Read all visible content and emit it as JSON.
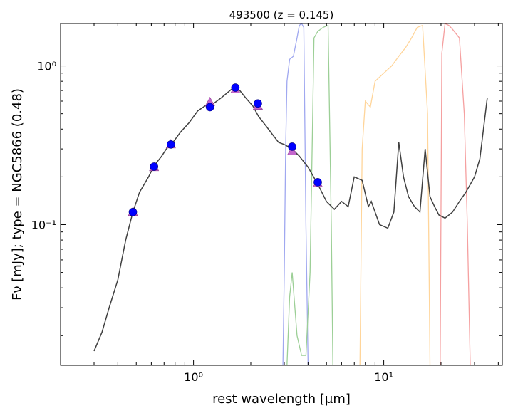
{
  "chart_data": {
    "type": "line",
    "title": "493500 (z = 0.145)",
    "xlabel": "rest wavelength [μm]",
    "ylabel": "Fν [mJy];  type = NGC5866 (0.48)",
    "xscale": "log",
    "yscale": "log",
    "xlim": [
      0.2,
      42
    ],
    "ylim": [
      0.013,
      1.85
    ],
    "grid": false,
    "x_ticks": [
      {
        "value": 1,
        "label": "10⁰"
      },
      {
        "value": 10,
        "label": "10¹"
      }
    ],
    "y_ticks": [
      {
        "value": 0.1,
        "label": "10⁻¹"
      },
      {
        "value": 1,
        "label": "10⁰"
      }
    ],
    "colors": {
      "sed": "#404040",
      "observed": "#0000ff",
      "model": "#c466cc",
      "filter_blue": "#a0a8f0",
      "filter_green": "#9ccf96",
      "filter_orange": "#ffd59a",
      "filter_red": "#f5a0a0"
    },
    "series": [
      {
        "kind": "sed_template",
        "x": [
          0.3,
          0.33,
          0.36,
          0.4,
          0.44,
          0.48,
          0.52,
          0.58,
          0.62,
          0.68,
          0.72,
          0.78,
          0.85,
          0.95,
          1.05,
          1.15,
          1.25,
          1.4,
          1.6,
          1.75,
          1.9,
          2.05,
          2.2,
          2.4,
          2.6,
          2.8,
          3.0,
          3.3,
          3.6,
          4.0,
          4.5,
          5.0,
          5.5,
          6.0,
          6.5,
          7.0,
          7.7,
          8.3,
          8.6,
          9.5,
          10.5,
          11.3,
          12.0,
          12.7,
          13.5,
          14.5,
          15.5,
          16.5,
          17.5,
          18.5,
          19.5,
          21,
          23,
          25,
          27,
          30,
          32,
          35
        ],
        "y": [
          0.016,
          0.021,
          0.03,
          0.045,
          0.08,
          0.12,
          0.16,
          0.2,
          0.235,
          0.27,
          0.3,
          0.33,
          0.38,
          0.44,
          0.52,
          0.56,
          0.57,
          0.63,
          0.72,
          0.7,
          0.62,
          0.56,
          0.48,
          0.42,
          0.37,
          0.33,
          0.32,
          0.3,
          0.27,
          0.23,
          0.18,
          0.14,
          0.125,
          0.14,
          0.13,
          0.2,
          0.19,
          0.13,
          0.14,
          0.1,
          0.095,
          0.12,
          0.33,
          0.2,
          0.15,
          0.13,
          0.12,
          0.3,
          0.15,
          0.13,
          0.115,
          0.11,
          0.12,
          0.14,
          0.16,
          0.2,
          0.26,
          0.63
        ]
      },
      {
        "kind": "observed",
        "x": [
          0.48,
          0.62,
          0.76,
          1.22,
          1.66,
          2.18,
          3.3,
          4.5
        ],
        "y": [
          0.12,
          0.232,
          0.32,
          0.55,
          0.73,
          0.58,
          0.31,
          0.185
        ]
      },
      {
        "kind": "model",
        "x": [
          0.48,
          0.62,
          0.76,
          1.22,
          1.66,
          2.18,
          3.3,
          4.5
        ],
        "y": [
          0.12,
          0.23,
          0.32,
          0.59,
          0.71,
          0.56,
          0.29,
          0.182
        ]
      }
    ],
    "filters": [
      {
        "band": "filter_blue",
        "x": [
          2.95,
          3.0,
          3.05,
          3.1,
          3.2,
          3.35,
          3.5,
          3.6,
          3.7,
          3.8,
          3.9,
          4.0
        ],
        "y": [
          0.013,
          0.05,
          0.3,
          0.8,
          1.1,
          1.15,
          1.5,
          1.8,
          1.85,
          1.75,
          0.1,
          0.013
        ]
      },
      {
        "band": "filter_green",
        "x": [
          3.1,
          3.2,
          3.3,
          3.5,
          3.7,
          3.9,
          4.1,
          4.3,
          4.5,
          4.8,
          5.1,
          5.3,
          5.4
        ],
        "y": [
          0.013,
          0.035,
          0.05,
          0.02,
          0.015,
          0.015,
          0.05,
          1.5,
          1.65,
          1.75,
          1.8,
          0.1,
          0.013
        ]
      },
      {
        "band": "filter_orange",
        "x": [
          7.5,
          7.7,
          8.0,
          8.5,
          9.0,
          10.0,
          11.0,
          12.0,
          13.0,
          14.0,
          15.0,
          16.0,
          17.0,
          17.5
        ],
        "y": [
          0.013,
          0.3,
          0.6,
          0.55,
          0.8,
          0.9,
          1.0,
          1.15,
          1.3,
          1.5,
          1.75,
          1.8,
          0.5,
          0.013
        ]
      },
      {
        "band": "filter_red",
        "x": [
          19.8,
          20.2,
          21.0,
          22.0,
          23.0,
          25.0,
          26.5,
          27.5,
          28.5
        ],
        "y": [
          0.013,
          1.2,
          1.85,
          1.8,
          1.7,
          1.5,
          0.5,
          0.1,
          0.013
        ]
      }
    ]
  }
}
